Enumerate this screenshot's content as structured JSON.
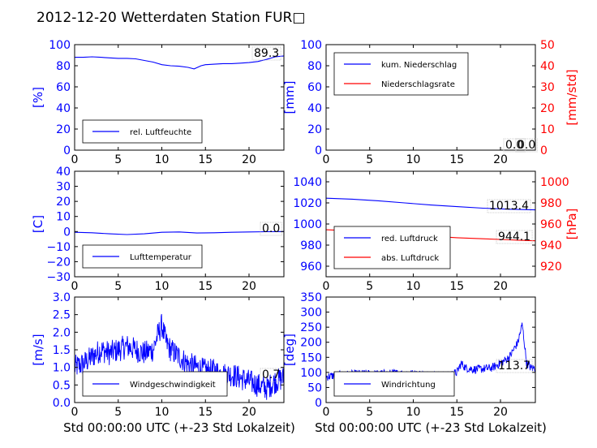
{
  "title": "2012-12-20 Wetterdaten Station FUR□",
  "colors": {
    "primary": "#0000ff",
    "secondary": "#ff0000",
    "light": "#8080ff"
  },
  "chart_data": [
    {
      "type": "line",
      "ylabel": "[%]",
      "xlim": [
        0,
        24
      ],
      "ylim": [
        0,
        100
      ],
      "xticks": [
        0,
        5,
        10,
        15,
        20
      ],
      "yticks": [
        0,
        20,
        40,
        60,
        80,
        100
      ],
      "legend_location": "lower-left",
      "value_labels": [
        "89.3"
      ],
      "series": [
        {
          "name": "rel. Luftfeuchte",
          "axis": "left",
          "color": "#0000ff",
          "x": [
            0,
            1,
            2,
            3,
            4,
            5,
            6,
            7,
            8,
            9,
            10,
            11,
            12,
            13,
            13.7,
            14.5,
            15,
            16,
            17,
            18,
            19,
            20,
            21,
            22,
            23,
            24
          ],
          "y": [
            88,
            88,
            88.5,
            88,
            87.5,
            87,
            87,
            86.5,
            85,
            83.5,
            81,
            80,
            79.5,
            78.5,
            77,
            80,
            81,
            81.5,
            82,
            82,
            82.5,
            83,
            84,
            86,
            88.5,
            89.3
          ]
        }
      ]
    },
    {
      "type": "line",
      "ylabel": "[mm]",
      "ylabel2": "[mm/std]",
      "xlim": [
        0,
        24
      ],
      "ylim": [
        0,
        100
      ],
      "ylim2": [
        0,
        50
      ],
      "xticks": [
        0,
        5,
        10,
        15,
        20
      ],
      "yticks": [
        0,
        20,
        40,
        60,
        80,
        100
      ],
      "yticks2": [
        0,
        10,
        20,
        30,
        40,
        50
      ],
      "legend_location": "upper-left",
      "value_labels": [
        "0.0",
        "0.0"
      ],
      "series": [
        {
          "name": "kum. Niederschlag",
          "axis": "left",
          "color": "#0000ff",
          "x": [
            0,
            24
          ],
          "y": [
            0,
            0
          ]
        },
        {
          "name": "Niederschlagsrate",
          "axis": "right",
          "color": "#ff0000",
          "x": [
            0,
            24
          ],
          "y": [
            0,
            0
          ]
        }
      ]
    },
    {
      "type": "line",
      "ylabel": "[C]",
      "xlim": [
        0,
        24
      ],
      "ylim": [
        -30,
        40
      ],
      "xticks": [
        0,
        5,
        10,
        15,
        20
      ],
      "yticks": [
        -30,
        -20,
        -10,
        0,
        10,
        20,
        30,
        40
      ],
      "legend_location": "lower-left",
      "value_labels": [
        "0.0"
      ],
      "series": [
        {
          "name": "Lufttemperatur",
          "axis": "left",
          "color": "#0000ff",
          "x": [
            0,
            2,
            4,
            6,
            8,
            10,
            12,
            14,
            16,
            18,
            20,
            22,
            24
          ],
          "y": [
            -0.5,
            -0.8,
            -1.5,
            -2,
            -1.5,
            -0.5,
            -0.3,
            -1,
            -0.8,
            -0.5,
            -0.3,
            -0.1,
            0
          ]
        }
      ]
    },
    {
      "type": "line",
      "ylabel": "",
      "ylabel2": "[hPa]",
      "xlim": [
        0,
        24
      ],
      "ylim": [
        950,
        1050
      ],
      "ylim2": [
        910,
        1010
      ],
      "xticks": [
        0,
        5,
        10,
        15,
        20
      ],
      "yticks": [
        960,
        980,
        1000,
        1020,
        1040
      ],
      "yticks2": [
        920,
        940,
        960,
        980,
        1000
      ],
      "legend_location": "lower-left",
      "value_labels": [
        "1013.4",
        "944.1"
      ],
      "series": [
        {
          "name": "red. Luftdruck",
          "axis": "left",
          "color": "#0000ff",
          "x": [
            0,
            3,
            6,
            9,
            12,
            15,
            18,
            21,
            24
          ],
          "y": [
            1024.5,
            1023.5,
            1022,
            1020,
            1018,
            1016.5,
            1015,
            1014,
            1013.4
          ]
        },
        {
          "name": "abs. Luftdruck",
          "axis": "right",
          "color": "#ff0000",
          "x": [
            0,
            3,
            6,
            9,
            12,
            15,
            18,
            21,
            24
          ],
          "y": [
            954.5,
            953.5,
            952,
            950.5,
            948.5,
            947,
            946,
            945,
            944.1
          ]
        }
      ]
    },
    {
      "type": "line",
      "ylabel": "[m/s]",
      "xlabel": "Std 00:00:00 UTC (+-23 Std Lokalzeit)",
      "xlim": [
        0,
        24
      ],
      "ylim": [
        0,
        3
      ],
      "xticks": [
        0,
        5,
        10,
        15,
        20
      ],
      "yticks": [
        0.0,
        0.5,
        1.0,
        1.5,
        2.0,
        2.5,
        3.0
      ],
      "legend_location": "lower-left",
      "value_labels": [
        "0.7"
      ],
      "series": [
        {
          "name": "Windgeschwindigkeit",
          "axis": "left",
          "color": "#0000ff",
          "noisy": true,
          "noise": 0.35,
          "x": [
            0,
            1,
            2,
            3,
            4,
            5,
            6,
            7,
            8,
            9,
            9.5,
            10,
            10.5,
            11,
            12,
            13,
            14,
            15,
            16,
            17,
            18,
            19,
            20,
            21,
            22,
            23,
            24
          ],
          "y": [
            1.0,
            1.1,
            1.3,
            1.5,
            1.4,
            1.5,
            1.6,
            1.5,
            1.4,
            1.5,
            1.9,
            2.2,
            1.7,
            1.5,
            1.3,
            1.1,
            1.0,
            0.9,
            0.9,
            0.8,
            0.8,
            0.7,
            0.6,
            0.5,
            0.4,
            0.6,
            0.7
          ]
        }
      ]
    },
    {
      "type": "line",
      "ylabel": "[deg]",
      "xlabel": "Std 00:00:00 UTC (+-23 Std Lokalzeit)",
      "xlim": [
        0,
        24
      ],
      "ylim": [
        0,
        350
      ],
      "xticks": [
        0,
        5,
        10,
        15,
        20
      ],
      "yticks": [
        0,
        50,
        100,
        150,
        200,
        250,
        300,
        350
      ],
      "legend_location": "lower-left",
      "value_labels": [
        "113.7"
      ],
      "series": [
        {
          "name": "Windrichtung",
          "axis": "left",
          "color": "#0000ff",
          "noisy": true,
          "noise": 14,
          "x": [
            0,
            1,
            2,
            4,
            6,
            8,
            10,
            12,
            14,
            15,
            15.5,
            16,
            17,
            18,
            19,
            20,
            21,
            22,
            22.5,
            23,
            23.5,
            24
          ],
          "y": [
            85,
            90,
            92,
            95,
            95,
            97,
            95,
            92,
            90,
            100,
            130,
            115,
            110,
            112,
            115,
            130,
            150,
            200,
            260,
            130,
            115,
            113.7
          ]
        }
      ]
    }
  ]
}
